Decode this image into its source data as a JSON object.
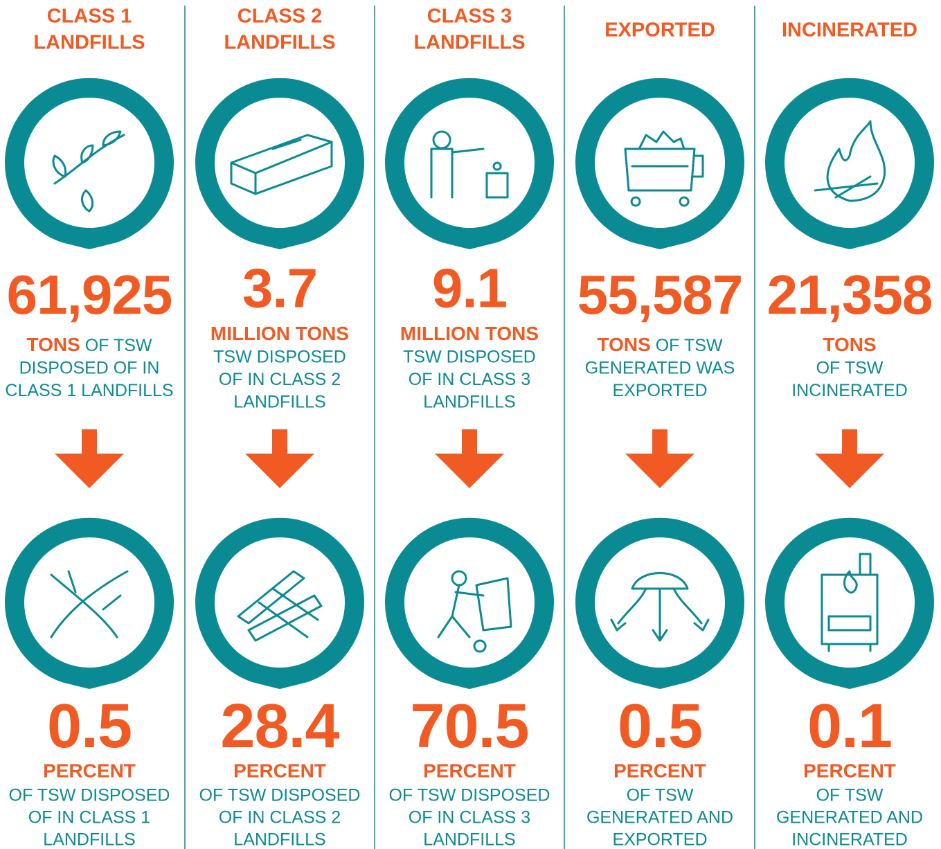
{
  "columns": [
    {
      "title": [
        "CLASS 1",
        "LANDFILLS"
      ],
      "stat": "61,925",
      "unit_line": [
        "TONS",
        "OF TSW"
      ],
      "lines": [
        "DISPOSED OF IN",
        "CLASS 1 LANDFILLS"
      ],
      "percent": "0.5",
      "percent_unit": "PERCENT",
      "percent_lines": [
        "OF TSW DISPOSED",
        "OF IN CLASS 1",
        "LANDFILLS"
      ]
    },
    {
      "title": [
        "CLASS 2",
        "LANDFILLS"
      ],
      "stat": "3.7",
      "unit_line": [
        "MILLION TONS"
      ],
      "lines": [
        "TSW DISPOSED",
        "OF IN CLASS 2",
        "LANDFILLS"
      ],
      "percent": "28.4",
      "percent_unit": "PERCENT",
      "percent_lines": [
        "OF TSW DISPOSED",
        "OF IN CLASS 2",
        "LANDFILLS"
      ]
    },
    {
      "title": [
        "CLASS 3",
        "LANDFILLS"
      ],
      "stat": "9.1",
      "unit_line": [
        "MILLION TONS"
      ],
      "lines": [
        "TSW DISPOSED",
        "OF IN CLASS 3",
        "LANDFILLS"
      ],
      "percent": "70.5",
      "percent_unit": "PERCENT",
      "percent_lines": [
        "OF TSW DISPOSED",
        "OF IN CLASS 3",
        "LANDFILLS"
      ]
    },
    {
      "title": [
        "EXPORTED"
      ],
      "stat": "55,587",
      "unit_line": [
        "TONS",
        "OF TSW"
      ],
      "lines": [
        "GENERATED WAS",
        "EXPORTED"
      ],
      "percent": "0.5",
      "percent_unit": "PERCENT",
      "percent_lines": [
        "OF TSW",
        "GENERATED AND",
        "EXPORTED"
      ]
    },
    {
      "title": [
        "INCINERATED"
      ],
      "stat": "21,358",
      "unit_line": [
        "TONS"
      ],
      "lines": [
        "OF TSW",
        "INCINERATED"
      ],
      "percent": "0.1",
      "percent_unit": "PERCENT",
      "percent_lines": [
        "OF TSW",
        "GENERATED AND",
        "INCINERATED"
      ]
    }
  ]
}
